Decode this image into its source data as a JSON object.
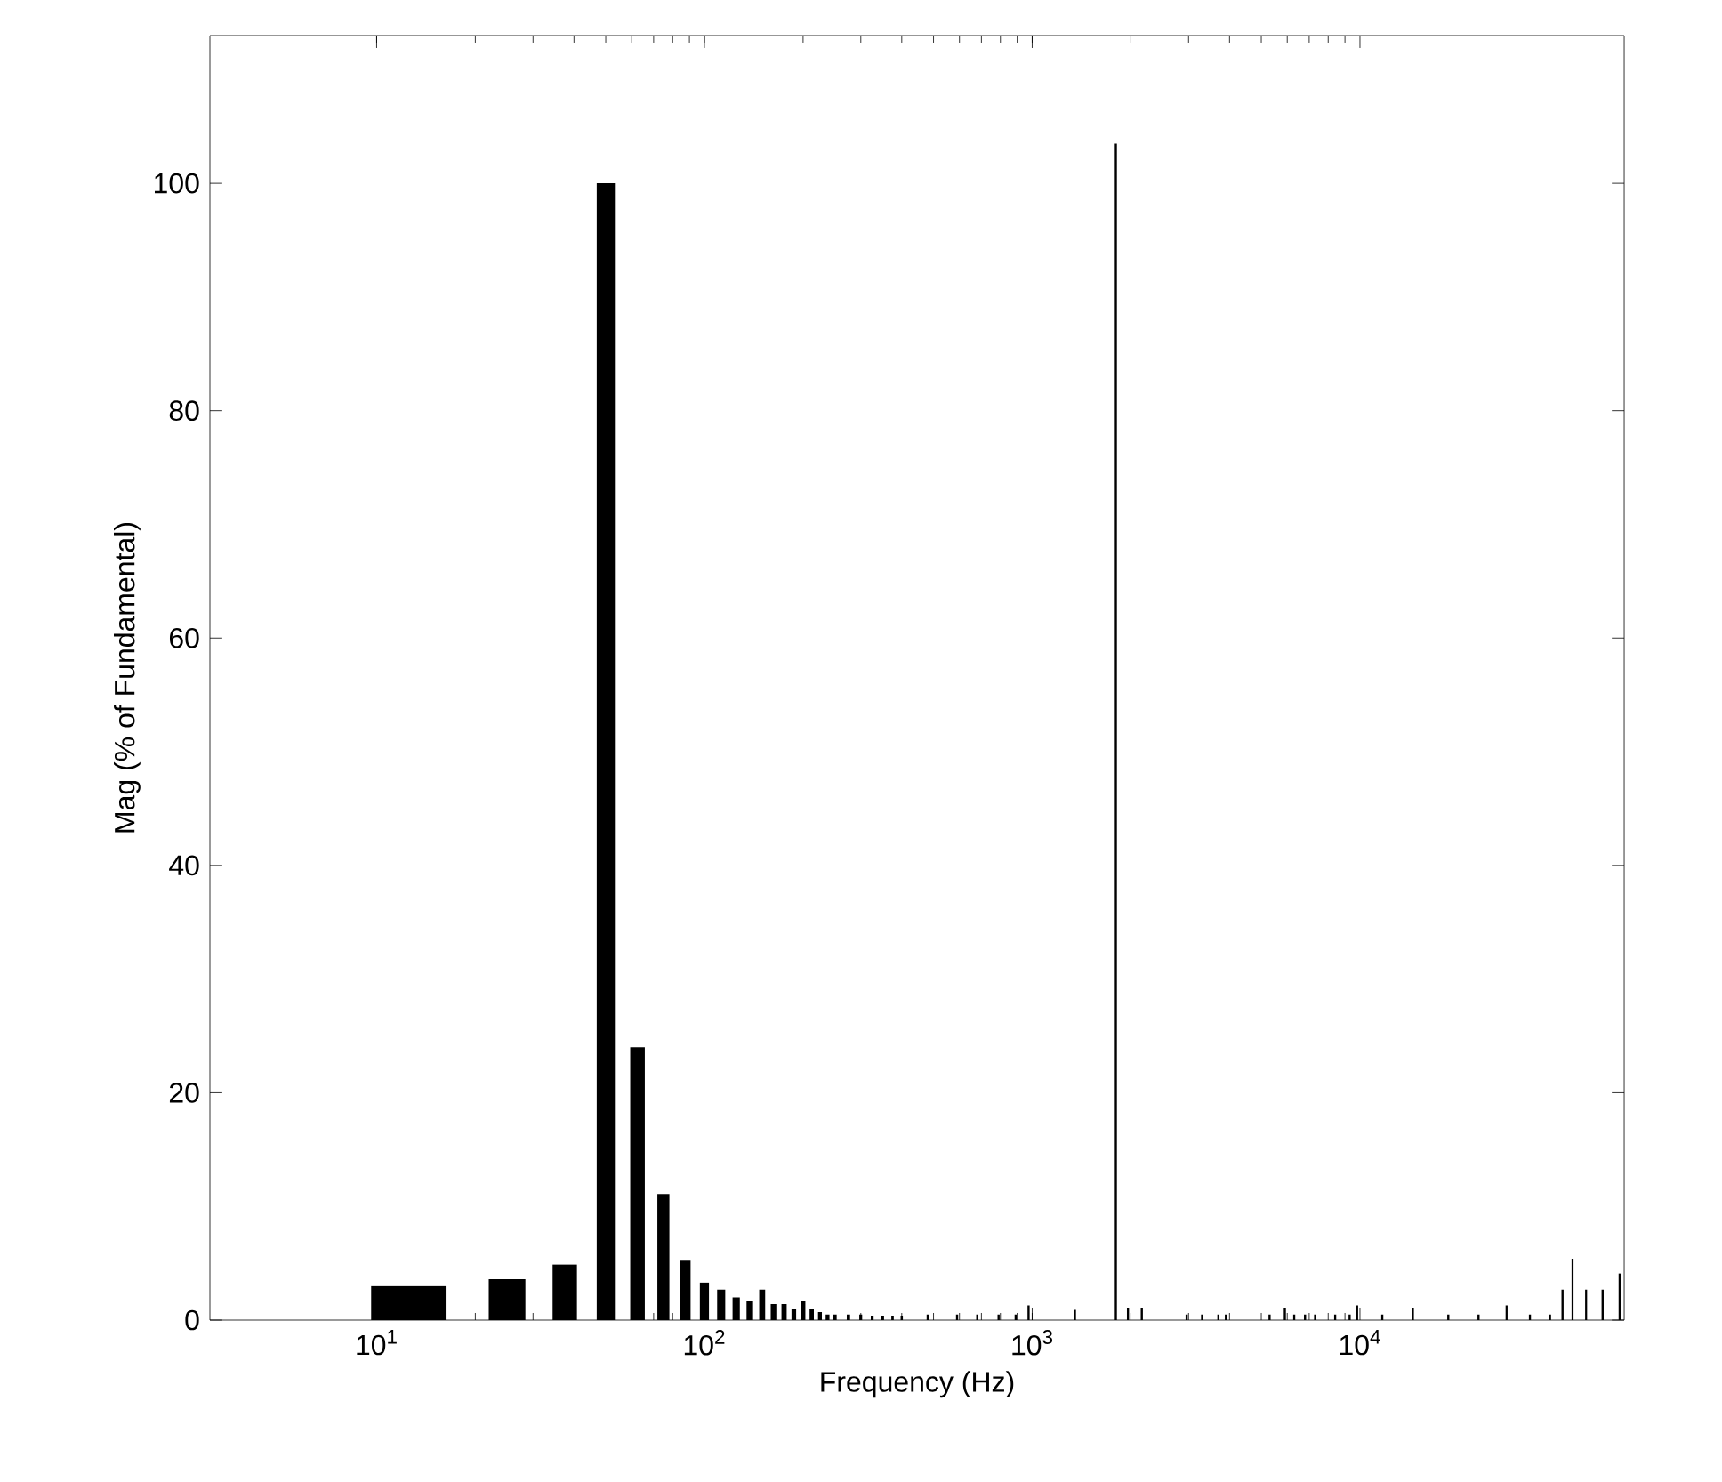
{
  "chart_data": {
    "type": "bar",
    "xlabel": "Frequency (Hz)",
    "ylabel": "Mag (% of Fundamental)",
    "color": "#000000",
    "log": "x",
    "x": [
      12.5,
      25,
      37.5,
      50,
      62.5,
      75,
      87.5,
      100,
      112.5,
      125,
      137.5,
      150,
      162.5,
      175,
      187.5,
      200,
      212.5,
      225,
      237.5,
      250,
      275,
      300,
      325,
      350,
      375,
      400,
      480,
      590,
      680,
      790,
      890,
      975,
      1350,
      1800,
      1960,
      2160,
      2960,
      3300,
      3700,
      3900,
      5300,
      5900,
      6300,
      6800,
      7300,
      8400,
      9300,
      9800,
      11700,
      14500,
      18600,
      23000,
      28000,
      33000,
      38000,
      41500,
      44500,
      49000,
      55000,
      62000
    ],
    "values": [
      3.0,
      3.6,
      4.9,
      100,
      24,
      11.1,
      5.3,
      3.3,
      2.7,
      2.0,
      1.7,
      2.7,
      1.4,
      1.4,
      1.0,
      1.7,
      1.0,
      0.7,
      0.5,
      0.5,
      0.5,
      0.5,
      0.4,
      0.4,
      0.4,
      0.4,
      0.5,
      0.5,
      0.5,
      0.5,
      0.5,
      1.3,
      0.9,
      103.5,
      1.1,
      1.1,
      0.5,
      0.5,
      0.5,
      0.5,
      0.5,
      1.1,
      0.5,
      0.5,
      0.5,
      0.5,
      0.5,
      1.3,
      0.5,
      1.1,
      0.5,
      0.5,
      1.3,
      0.5,
      0.5,
      2.7,
      5.4,
      2.7,
      2.7,
      4.1
    ],
    "xlim": [
      3.1,
      64000
    ],
    "ylim": [
      0,
      113
    ],
    "xticks": [
      {
        "value": 10,
        "label": "10$^{1}$"
      },
      {
        "value": 100,
        "label": "10$^{2}$"
      },
      {
        "value": 1000,
        "label": "10$^{3}$"
      },
      {
        "value": 10000,
        "label": "10$^{4}$"
      }
    ],
    "yticks": [
      0,
      20,
      40,
      60,
      80,
      100
    ],
    "grid": false
  }
}
